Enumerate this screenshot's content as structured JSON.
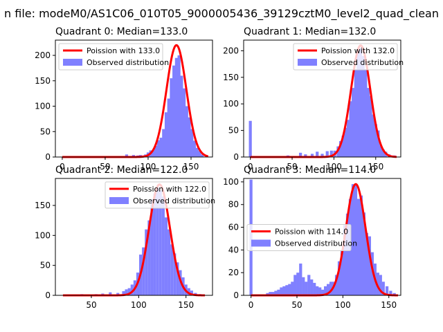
{
  "suptitle": "n file: modeM0/AS1C06_010T05_9000005436_39129cztM0_level2_quad_clean",
  "colors": {
    "fit": "#ff0000",
    "hist": "#8080ff",
    "legend_bg": "#ffffff"
  },
  "chart_data": [
    {
      "type": "bar",
      "title": "Quadrant 0: Median=133.0",
      "median": 133.0,
      "legend": [
        "Poission with 133.0",
        "Observed distribution"
      ],
      "legend_placement": "top-left",
      "xlim": [
        -8,
        175
      ],
      "ylim": [
        0,
        230
      ],
      "xticks": [
        0,
        50,
        100,
        150
      ],
      "yticks": [
        0,
        50,
        100,
        150,
        200
      ],
      "bin_width": 3.4,
      "bins": [
        [
          75,
          5
        ],
        [
          83,
          4
        ],
        [
          88,
          3
        ],
        [
          91,
          4
        ],
        [
          94,
          3
        ],
        [
          97,
          5
        ],
        [
          100,
          9
        ],
        [
          103,
          13
        ],
        [
          106,
          13
        ],
        [
          109,
          22
        ],
        [
          112,
          33
        ],
        [
          115,
          38
        ],
        [
          118,
          55
        ],
        [
          121,
          88
        ],
        [
          124,
          115
        ],
        [
          127,
          155
        ],
        [
          130,
          180
        ],
        [
          133,
          195
        ],
        [
          136,
          200
        ],
        [
          139,
          160
        ],
        [
          142,
          135
        ],
        [
          145,
          100
        ],
        [
          148,
          78
        ],
        [
          151,
          55
        ],
        [
          154,
          32
        ],
        [
          157,
          18
        ],
        [
          160,
          12
        ],
        [
          163,
          5
        ]
      ],
      "fit": {
        "mean": 133,
        "peak": 220,
        "x_range": [
          0,
          170
        ]
      }
    },
    {
      "type": "bar",
      "title": "Quadrant 1: Median=132.0",
      "median": 132.0,
      "legend": [
        "Poission with 132.0",
        "Observed distribution"
      ],
      "legend_placement": "top-right",
      "xlim": [
        -8,
        180
      ],
      "ylim": [
        0,
        220
      ],
      "xticks": [
        0,
        50,
        100,
        150
      ],
      "yticks": [
        0,
        50,
        100,
        150,
        200
      ],
      "bin_width": 3.5,
      "bins": [
        [
          0,
          68
        ],
        [
          45,
          3
        ],
        [
          52,
          2
        ],
        [
          60,
          8
        ],
        [
          66,
          5
        ],
        [
          74,
          6
        ],
        [
          80,
          10
        ],
        [
          86,
          6
        ],
        [
          92,
          11
        ],
        [
          97,
          12
        ],
        [
          101,
          12
        ],
        [
          105,
          20
        ],
        [
          108,
          30
        ],
        [
          111,
          40
        ],
        [
          114,
          55
        ],
        [
          117,
          70
        ],
        [
          120,
          105
        ],
        [
          123,
          130
        ],
        [
          126,
          165
        ],
        [
          129,
          200
        ],
        [
          132,
          205
        ],
        [
          135,
          190
        ],
        [
          138,
          165
        ],
        [
          141,
          130
        ],
        [
          144,
          115
        ],
        [
          147,
          80
        ],
        [
          150,
          62
        ],
        [
          153,
          50
        ],
        [
          156,
          22
        ],
        [
          159,
          14
        ],
        [
          162,
          10
        ],
        [
          166,
          5
        ],
        [
          172,
          3
        ]
      ],
      "fit": {
        "mean": 132,
        "peak": 210,
        "x_range": [
          0,
          175
        ]
      }
    },
    {
      "type": "bar",
      "title": "Quadrant 2: Median=122.0",
      "median": 122.0,
      "legend": [
        "Poission with 122.0",
        "Observed distribution"
      ],
      "legend_placement": "top-right",
      "xlim": [
        12,
        178
      ],
      "ylim": [
        0,
        195
      ],
      "xticks": [
        50,
        100,
        150
      ],
      "yticks": [
        0,
        50,
        100,
        150
      ],
      "bin_width": 3.0,
      "bins": [
        [
          40,
          2
        ],
        [
          55,
          2
        ],
        [
          62,
          3
        ],
        [
          70,
          5
        ],
        [
          78,
          4
        ],
        [
          84,
          7
        ],
        [
          87,
          10
        ],
        [
          90,
          12
        ],
        [
          93,
          18
        ],
        [
          96,
          25
        ],
        [
          99,
          38
        ],
        [
          102,
          68
        ],
        [
          105,
          80
        ],
        [
          108,
          110
        ],
        [
          111,
          125
        ],
        [
          114,
          160
        ],
        [
          117,
          170
        ],
        [
          120,
          180
        ],
        [
          123,
          175
        ],
        [
          126,
          165
        ],
        [
          129,
          130
        ],
        [
          132,
          110
        ],
        [
          135,
          85
        ],
        [
          138,
          70
        ],
        [
          141,
          55
        ],
        [
          144,
          42
        ],
        [
          147,
          30
        ],
        [
          150,
          18
        ],
        [
          153,
          12
        ],
        [
          156,
          8
        ],
        [
          160,
          4
        ],
        [
          165,
          2
        ]
      ],
      "fit": {
        "mean": 122,
        "peak": 185,
        "x_range": [
          20,
          170
        ]
      }
    },
    {
      "type": "bar",
      "title": "Quadrant 3: Median=114.0",
      "median": 114.0,
      "legend": [
        "Poission with 114.0",
        "Observed distribution"
      ],
      "legend_placement": "center-left",
      "xlim": [
        -8,
        163
      ],
      "ylim": [
        0,
        103
      ],
      "xticks": [
        0,
        50,
        100,
        150
      ],
      "yticks": [
        0,
        20,
        40,
        60,
        80,
        100
      ],
      "bin_width": 3.2,
      "bins": [
        [
          0,
          102
        ],
        [
          18,
          2
        ],
        [
          21,
          3
        ],
        [
          24,
          3
        ],
        [
          27,
          4
        ],
        [
          30,
          5
        ],
        [
          33,
          7
        ],
        [
          36,
          8
        ],
        [
          39,
          9
        ],
        [
          42,
          10
        ],
        [
          45,
          12
        ],
        [
          48,
          18
        ],
        [
          51,
          20
        ],
        [
          54,
          28
        ],
        [
          57,
          16
        ],
        [
          60,
          12
        ],
        [
          63,
          18
        ],
        [
          66,
          14
        ],
        [
          69,
          11
        ],
        [
          72,
          8
        ],
        [
          75,
          7
        ],
        [
          78,
          5
        ],
        [
          81,
          8
        ],
        [
          84,
          10
        ],
        [
          87,
          12
        ],
        [
          90,
          12
        ],
        [
          93,
          18
        ],
        [
          96,
          30
        ],
        [
          99,
          40
        ],
        [
          102,
          62
        ],
        [
          105,
          72
        ],
        [
          108,
          85
        ],
        [
          111,
          98
        ],
        [
          114,
          97
        ],
        [
          117,
          85
        ],
        [
          120,
          88
        ],
        [
          123,
          73
        ],
        [
          126,
          55
        ],
        [
          129,
          52
        ],
        [
          132,
          38
        ],
        [
          135,
          28
        ],
        [
          138,
          20
        ],
        [
          141,
          18
        ],
        [
          144,
          12
        ],
        [
          148,
          8
        ],
        [
          152,
          4
        ],
        [
          156,
          2
        ]
      ],
      "fit": {
        "mean": 114,
        "peak": 98,
        "x_range": [
          0,
          160
        ]
      }
    }
  ]
}
